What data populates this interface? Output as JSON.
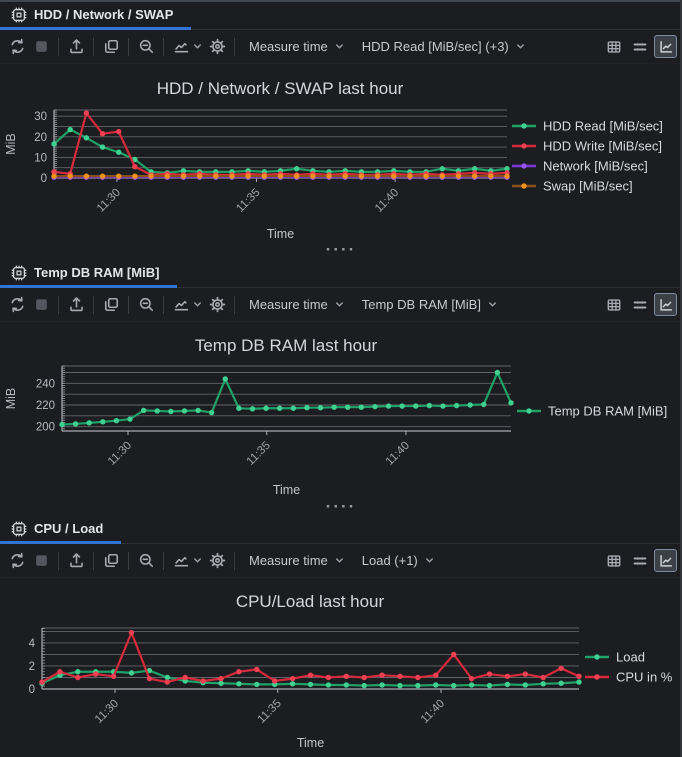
{
  "colors": {
    "accent": "#3273d6",
    "grid": "#74777b",
    "axis": "#aaadb2",
    "tick_text": "#b7bac0",
    "title_text": "#d4d7dc",
    "legend_text": "#d7d9de"
  },
  "panels": [
    {
      "tab": "HDD / Network / SWAP",
      "tab_icon": "chip-icon",
      "toolbar": {
        "measure_dropdown": "Measure time",
        "series_dropdown": "HDD Read [MiB/sec] (+3)",
        "left_icons": [
          "refresh-icon",
          "stop-icon",
          "export-icon",
          "copy-icon",
          "zoom-out-icon",
          "chart-type-icon",
          "settings-gear-icon"
        ],
        "view_toggles": [
          "table-view-icon",
          "text-view-icon",
          "chart-view-icon"
        ],
        "active_view": "chart-view-icon"
      },
      "splitter": "····"
    },
    {
      "tab": "Temp DB RAM [MiB]",
      "tab_icon": "chip-icon",
      "toolbar": {
        "measure_dropdown": "Measure time",
        "series_dropdown": "Temp DB RAM [MiB]",
        "left_icons": [
          "refresh-icon",
          "stop-icon",
          "export-icon",
          "copy-icon",
          "zoom-out-icon",
          "chart-type-icon",
          "settings-gear-icon"
        ],
        "view_toggles": [
          "table-view-icon",
          "text-view-icon",
          "chart-view-icon"
        ],
        "active_view": "chart-view-icon"
      },
      "splitter": "····"
    },
    {
      "tab": "CPU / Load",
      "tab_icon": "chip-icon",
      "toolbar": {
        "measure_dropdown": "Measure time",
        "series_dropdown": "Load (+1)",
        "left_icons": [
          "refresh-icon",
          "stop-icon",
          "export-icon",
          "copy-icon",
          "zoom-out-icon",
          "chart-type-icon",
          "settings-gear-icon"
        ],
        "view_toggles": [
          "table-view-icon",
          "text-view-icon",
          "chart-view-icon"
        ],
        "active_view": "chart-view-icon"
      },
      "splitter": ""
    }
  ],
  "chart_data": [
    {
      "type": "line",
      "title": "HDD / Network / SWAP last hour",
      "xlabel": "Time",
      "ylabel": "MiB",
      "x_tick_labels": [
        "11:30",
        "11:35",
        "11:40"
      ],
      "ylim": [
        0,
        33
      ],
      "yticks": [
        0,
        10,
        20,
        30
      ],
      "gridlines": [
        5,
        10,
        15,
        20,
        25,
        30
      ],
      "minor_step": 1,
      "legend_position": "right",
      "series": [
        {
          "name": "HDD Read [MiB/sec]",
          "line": "#1fa268",
          "dot": "#3ed191",
          "values": [
            16.5,
            23.5,
            19.5,
            15,
            12.5,
            9,
            3,
            2.5,
            3.5,
            3,
            3,
            3,
            3.5,
            3,
            3.5,
            4.5,
            3.5,
            3,
            3.5,
            3,
            3,
            3.5,
            3,
            3,
            4.5,
            3.5,
            4.5,
            3.5,
            4.5
          ]
        },
        {
          "name": "HDD Write [MiB/sec]",
          "line": "#d62a3c",
          "dot": "#ef4053",
          "values": [
            3,
            2,
            31.5,
            21.5,
            22.5,
            5.5,
            1.5,
            2,
            1.5,
            2,
            1.5,
            1.5,
            2,
            1.5,
            2,
            1.5,
            2,
            1.5,
            2,
            1.5,
            1.5,
            2,
            1.5,
            2,
            1.5,
            2,
            2.5,
            2,
            2.5
          ]
        },
        {
          "name": "Network [MiB/sec]",
          "line": "#7b36d9",
          "dot": "#9455ee",
          "values": [
            0.4,
            0.4,
            0.4,
            0.4,
            0.4,
            0.4,
            0.4,
            0.4,
            0.4,
            0.4,
            0.4,
            0.4,
            0.4,
            0.4,
            0.4,
            0.4,
            0.4,
            0.4,
            0.4,
            0.4,
            0.4,
            0.4,
            0.4,
            0.4,
            0.4,
            0.4,
            0.4,
            0.4,
            0.4
          ]
        },
        {
          "name": "Swap [MiB/sec]",
          "line": "#8a5116",
          "dot": "#f0901c",
          "values": [
            0.9,
            0.9,
            0.9,
            0.9,
            0.9,
            0.9,
            0.9,
            0.9,
            0.9,
            0.9,
            0.9,
            0.9,
            0.9,
            0.9,
            0.9,
            0.9,
            0.9,
            0.9,
            0.9,
            0.9,
            0.9,
            0.9,
            0.9,
            0.9,
            0.9,
            0.9,
            0.9,
            0.9,
            0.9
          ]
        }
      ]
    },
    {
      "type": "line",
      "title": "Temp DB RAM last hour",
      "xlabel": "Time",
      "ylabel": "MiB",
      "x_tick_labels": [
        "11:30",
        "11:35",
        "11:40"
      ],
      "ylim": [
        196,
        256
      ],
      "yticks": [
        200,
        220,
        240
      ],
      "gridlines": [
        200,
        210,
        220,
        230,
        240,
        250
      ],
      "minor_step": 2,
      "legend_position": "right",
      "series": [
        {
          "name": "Temp DB RAM [MiB]",
          "line": "#1fa268",
          "dot": "#3ed191",
          "values": [
            202,
            202.5,
            203.5,
            204.5,
            205.5,
            207,
            215,
            214.5,
            214,
            214.5,
            215,
            213,
            244,
            217,
            216.5,
            217,
            217,
            217,
            217.5,
            217.5,
            218,
            218,
            218,
            218.5,
            219,
            219,
            219,
            219.5,
            219,
            219.5,
            220,
            220.5,
            250,
            222
          ]
        }
      ]
    },
    {
      "type": "line",
      "title": "CPU/Load last hour",
      "xlabel": "Time",
      "ylabel": "",
      "x_tick_labels": [
        "11:30",
        "11:35",
        "11:40"
      ],
      "ylim": [
        0,
        5.3
      ],
      "yticks": [
        0,
        2,
        4
      ],
      "gridlines": [
        1,
        2,
        3,
        4,
        5
      ],
      "minor_step": 0.25,
      "legend_position": "right",
      "series": [
        {
          "name": "Load",
          "line": "#1fa268",
          "dot": "#3ed191",
          "values": [
            0.5,
            1.2,
            1.5,
            1.5,
            1.5,
            1.4,
            1.6,
            1.0,
            0.7,
            0.55,
            0.5,
            0.45,
            0.4,
            0.4,
            0.45,
            0.4,
            0.35,
            0.35,
            0.3,
            0.35,
            0.3,
            0.3,
            0.35,
            0.3,
            0.35,
            0.3,
            0.4,
            0.35,
            0.45,
            0.5,
            0.6
          ]
        },
        {
          "name": "CPU in %",
          "line": "#d62a3c",
          "dot": "#ef4053",
          "values": [
            0.6,
            1.5,
            1.0,
            1.3,
            1.1,
            4.9,
            0.9,
            0.6,
            1.0,
            0.7,
            0.9,
            1.5,
            1.7,
            0.7,
            0.9,
            1.2,
            1.0,
            1.1,
            1.0,
            1.2,
            1.1,
            1.0,
            1.2,
            3.0,
            0.9,
            1.3,
            1.1,
            1.3,
            1.0,
            1.8,
            1.1
          ]
        }
      ]
    }
  ]
}
